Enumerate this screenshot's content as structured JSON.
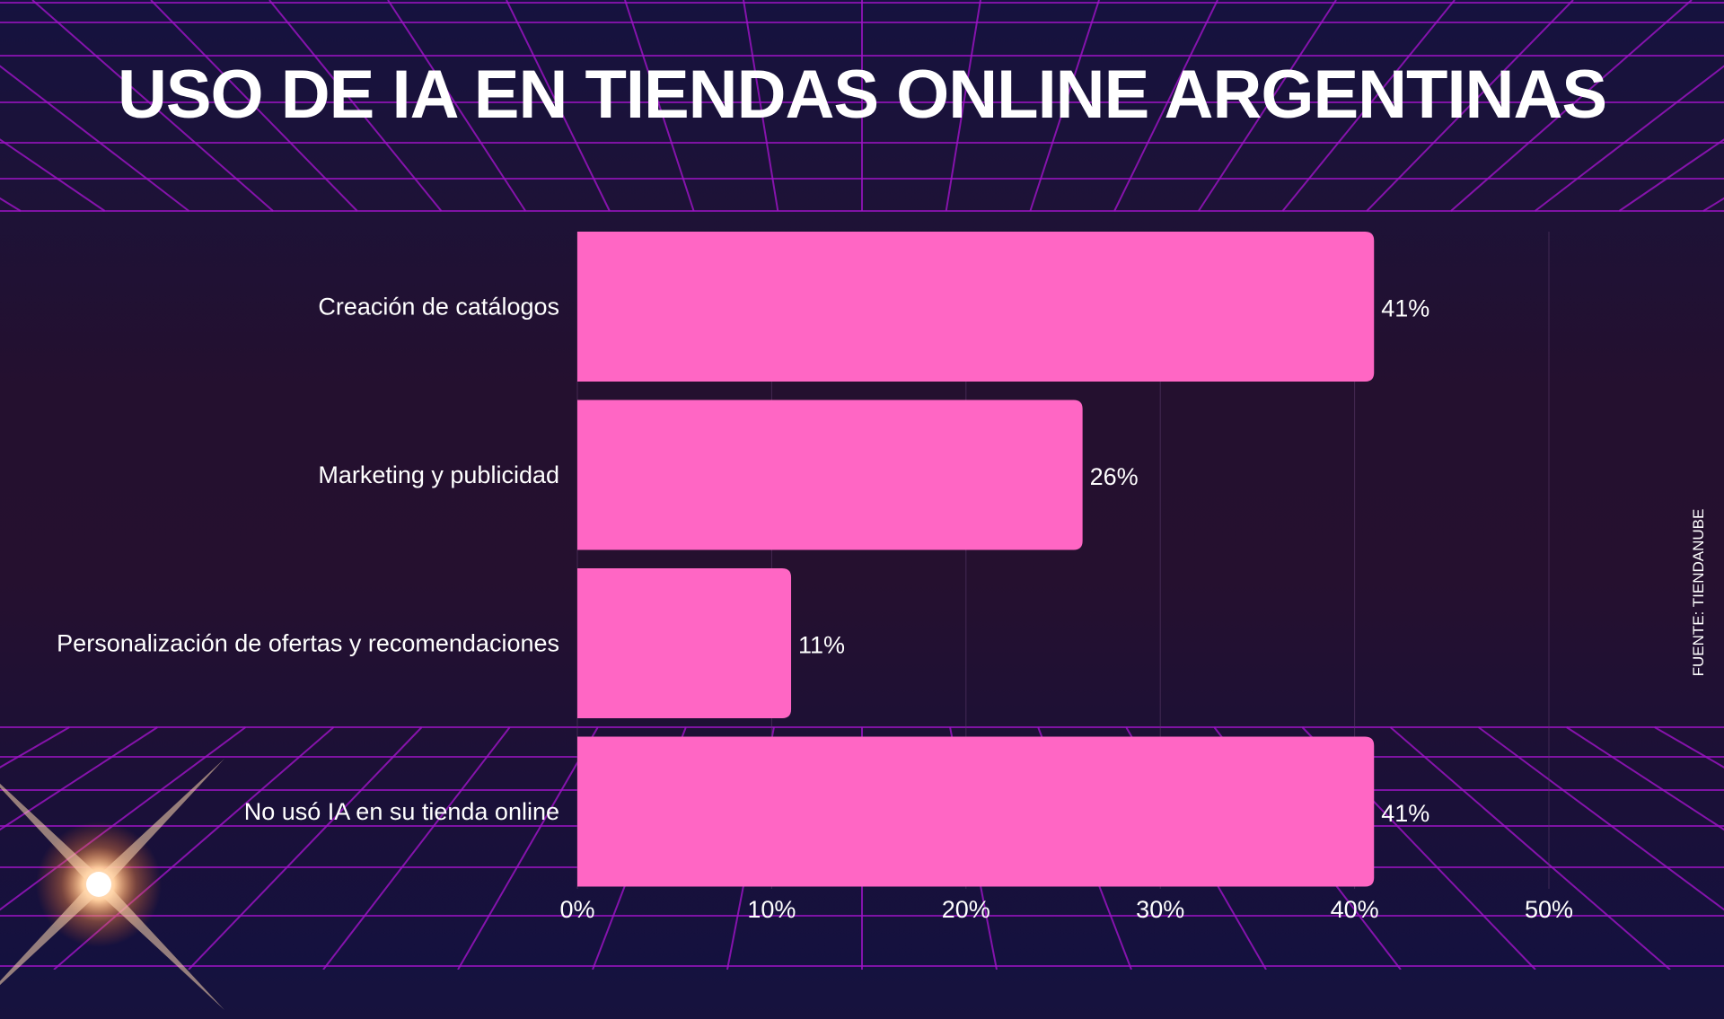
{
  "title": "USO DE IA EN TIENDAS ONLINE ARGENTINAS",
  "source": "FUENTE: TIENDANUBE",
  "colors": {
    "bar": "#ff66c4",
    "grid": "#a014c8",
    "background": "#1e1136"
  },
  "chart_data": {
    "type": "bar",
    "orientation": "horizontal",
    "title": "USO DE IA EN TIENDAS ONLINE ARGENTINAS",
    "categories": [
      "Creación de catálogos",
      "Marketing y publicidad",
      "Personalización de ofertas y recomendaciones",
      "No usó IA en su tienda online"
    ],
    "values": [
      41,
      26,
      11,
      41
    ],
    "value_labels": [
      "41%",
      "26%",
      "11%",
      "41%"
    ],
    "xlim": [
      0,
      50
    ],
    "xticks": [
      "0%",
      "10%",
      "20%",
      "30%",
      "40%",
      "50%"
    ],
    "grid": true,
    "xlabel": "",
    "ylabel": ""
  }
}
